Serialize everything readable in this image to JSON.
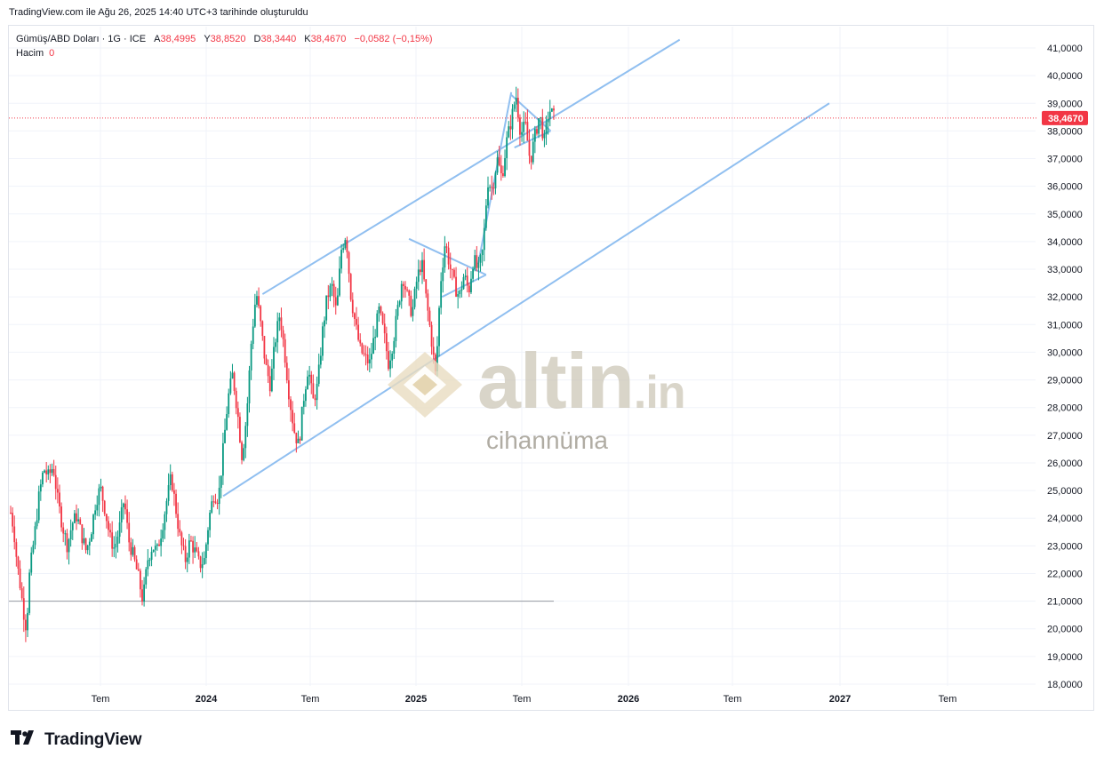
{
  "caption": "TradingView.com ile Ağu 26, 2025 14:40 UTC+3 tarihinde oluşturuldu",
  "legend": {
    "symbol": "Gümüş/ABD Doları · 1G · ICE",
    "o_label": "A",
    "o_value": "38,4995",
    "h_label": "Y",
    "h_value": "38,8520",
    "l_label": "D",
    "l_value": "38,3440",
    "c_label": "K",
    "c_value": "38,4670",
    "change": "−0,0582 (−0,15%)",
    "volume_label": "Hacim",
    "volume_value": "0"
  },
  "watermark": {
    "brand": "altin",
    "tld": ".in",
    "sub": "cihannüma"
  },
  "footer": {
    "logo_text": "TradingView"
  },
  "colors": {
    "up": "#089981",
    "down": "#f23645",
    "trendline": "#90bff0",
    "grid": "#f0f3fa"
  },
  "chart_data": {
    "type": "candlestick",
    "x_tick_labels": [
      "Tem",
      "2024",
      "Tem",
      "2025",
      "Tem",
      "2026",
      "Tem",
      "2027",
      "Tem"
    ],
    "y_tick_labels": [
      "18,0000",
      "19,0000",
      "20,0000",
      "21,0000",
      "22,0000",
      "23,0000",
      "24,0000",
      "25,0000",
      "26,0000",
      "27,0000",
      "28,0000",
      "29,0000",
      "30,0000",
      "31,0000",
      "32,0000",
      "33,0000",
      "34,0000",
      "35,0000",
      "36,0000",
      "37,0000",
      "38,0000",
      "39,0000",
      "40,0000",
      "41,0000"
    ],
    "ylim": [
      18,
      41.5
    ],
    "last_price_label": "38,4670",
    "last_price": 38.467,
    "horizontal_level": 21.0,
    "price_path": [
      [
        2023.45,
        24.2
      ],
      [
        2023.47,
        23.6
      ],
      [
        2023.49,
        22.4
      ],
      [
        2023.51,
        21.6
      ],
      [
        2023.53,
        20.7
      ],
      [
        2023.55,
        20.0
      ],
      [
        2023.57,
        22.0
      ],
      [
        2023.6,
        23.3
      ],
      [
        2023.63,
        24.8
      ],
      [
        2023.66,
        25.8
      ],
      [
        2023.69,
        25.5
      ],
      [
        2023.72,
        25.9
      ],
      [
        2023.75,
        24.6
      ],
      [
        2023.78,
        23.7
      ],
      [
        2023.81,
        23.0
      ],
      [
        2023.84,
        23.8
      ],
      [
        2023.87,
        24.1
      ],
      [
        2023.9,
        23.4
      ],
      [
        2023.93,
        22.8
      ],
      [
        2023.96,
        23.5
      ],
      [
        2023.99,
        24.6
      ],
      [
        2024.02,
        25.1
      ],
      [
        2024.05,
        24.3
      ],
      [
        2024.08,
        23.3
      ],
      [
        2024.11,
        22.9
      ],
      [
        2024.14,
        23.6
      ],
      [
        2024.17,
        24.7
      ],
      [
        2024.2,
        23.2
      ],
      [
        2024.23,
        22.6
      ],
      [
        2024.26,
        21.9
      ],
      [
        2024.29,
        21.0
      ],
      [
        2024.32,
        22.5
      ],
      [
        2024.35,
        23.0
      ],
      [
        2024.38,
        22.8
      ],
      [
        2024.41,
        23.6
      ],
      [
        2024.44,
        24.6
      ],
      [
        2024.47,
        25.5
      ],
      [
        2024.5,
        24.3
      ],
      [
        2024.53,
        23.1
      ],
      [
        2024.56,
        22.5
      ],
      [
        2024.59,
        23.2
      ],
      [
        2024.62,
        22.8
      ],
      [
        2024.65,
        22.3
      ],
      [
        2024.68,
        22.5
      ],
      [
        2024.71,
        24.0
      ],
      [
        2024.74,
        24.9
      ],
      [
        2024.77,
        24.7
      ],
      [
        2024.8,
        26.5
      ],
      [
        2024.83,
        28.3
      ],
      [
        2024.86,
        29.2
      ],
      [
        2024.89,
        27.9
      ],
      [
        2024.92,
        26.2
      ],
      [
        2024.95,
        27.8
      ],
      [
        2024.98,
        30.5
      ],
      [
        2025.01,
        32.2
      ],
      [
        2025.04,
        30.9
      ],
      [
        2025.07,
        29.5
      ],
      [
        2025.1,
        28.8
      ],
      [
        2025.13,
        30.4
      ],
      [
        2025.16,
        31.4
      ],
      [
        2025.19,
        30.0
      ],
      [
        2025.22,
        28.4
      ],
      [
        2025.25,
        27.2
      ],
      [
        2025.28,
        26.6
      ],
      [
        2025.31,
        28.3
      ],
      [
        2025.34,
        29.5
      ],
      [
        2025.37,
        28.2
      ],
      [
        2025.4,
        28.8
      ],
      [
        2025.43,
        30.7
      ],
      [
        2025.46,
        32.0
      ],
      [
        2025.49,
        32.4
      ],
      [
        2025.52,
        31.4
      ],
      [
        2025.55,
        33.7
      ],
      [
        2025.58,
        34.3
      ],
      [
        2025.61,
        32.1
      ],
      [
        2025.64,
        31.0
      ],
      [
        2025.67,
        30.1
      ],
      [
        2025.7,
        29.8
      ],
      [
        2025.73,
        29.6
      ],
      [
        2025.76,
        30.6
      ],
      [
        2025.79,
        31.5
      ],
      [
        2025.82,
        30.7
      ],
      [
        2025.85,
        29.6
      ],
      [
        2025.88,
        30.4
      ],
      [
        2025.91,
        31.6
      ],
      [
        2025.94,
        32.8
      ],
      [
        2025.97,
        32.0
      ],
      [
        2026.0,
        31.4
      ],
      [
        2026.03,
        32.6
      ],
      [
        2026.06,
        33.3
      ],
      [
        2026.09,
        31.9
      ],
      [
        2026.12,
        30.6
      ],
      [
        2026.15,
        29.1
      ],
      [
        2026.18,
        32.5
      ],
      [
        2026.21,
        34.0
      ],
      [
        2026.24,
        33.1
      ],
      [
        2026.27,
        32.4
      ],
      [
        2026.3,
        32.0
      ],
      [
        2026.33,
        32.8
      ],
      [
        2026.36,
        32.2
      ],
      [
        2026.39,
        33.4
      ],
      [
        2026.42,
        32.9
      ],
      [
        2026.45,
        33.7
      ],
      [
        2026.48,
        36.2
      ],
      [
        2026.51,
        35.9
      ],
      [
        2026.54,
        37.0
      ],
      [
        2026.57,
        36.3
      ],
      [
        2026.6,
        37.6
      ],
      [
        2026.63,
        38.4
      ],
      [
        2026.66,
        39.3
      ],
      [
        2026.69,
        37.9
      ],
      [
        2026.72,
        38.2
      ],
      [
        2026.75,
        36.9
      ],
      [
        2026.78,
        37.8
      ],
      [
        2026.81,
        38.6
      ],
      [
        2026.84,
        37.6
      ],
      [
        2026.87,
        38.8
      ],
      [
        2026.9,
        38.5
      ]
    ],
    "trendlines": [
      [
        [
          2025.05,
          32.1
        ],
        [
          2027.7,
          41.3
        ]
      ],
      [
        [
          2024.8,
          24.8
        ],
        [
          2028.65,
          39.0
        ]
      ],
      [
        [
          2025.98,
          34.1
        ],
        [
          2026.47,
          32.8
        ]
      ],
      [
        [
          2026.19,
          32.0
        ],
        [
          2026.47,
          32.8
        ]
      ],
      [
        [
          2026.42,
          33.2
        ],
        [
          2026.63,
          39.4
        ]
      ],
      [
        [
          2026.63,
          39.3
        ],
        [
          2026.88,
          38.0
        ]
      ],
      [
        [
          2026.65,
          37.4
        ],
        [
          2026.88,
          38.0
        ]
      ]
    ]
  }
}
